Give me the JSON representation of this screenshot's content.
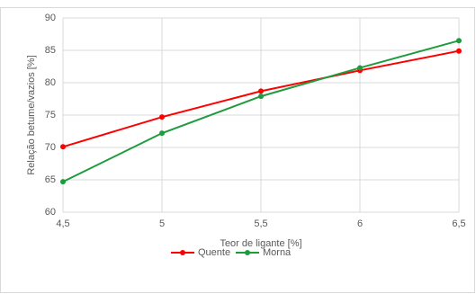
{
  "chart_data": {
    "type": "line",
    "xlabel": "Teor de ligante [%]",
    "ylabel": "Relação betume/vazios [%]",
    "x": [
      4.5,
      5,
      5.5,
      6,
      6.5
    ],
    "series": [
      {
        "name": "Quente",
        "color": "#ff0000",
        "values": [
          70.1,
          74.7,
          78.7,
          81.9,
          84.9
        ]
      },
      {
        "name": "Morna",
        "color": "#1e9b3c",
        "values": [
          64.7,
          72.2,
          77.9,
          82.3,
          86.5
        ]
      }
    ],
    "xlim": [
      4.5,
      6.5
    ],
    "xticks": [
      {
        "value": 4.5,
        "label": "4,5"
      },
      5,
      {
        "value": 5.5,
        "label": "5,5"
      },
      6,
      {
        "value": 6.5,
        "label": "6,5"
      }
    ],
    "ylim": [
      60,
      90
    ],
    "yticks": [
      60,
      65,
      70,
      75,
      80,
      85,
      90
    ],
    "grid": true,
    "legend": "bottom"
  }
}
